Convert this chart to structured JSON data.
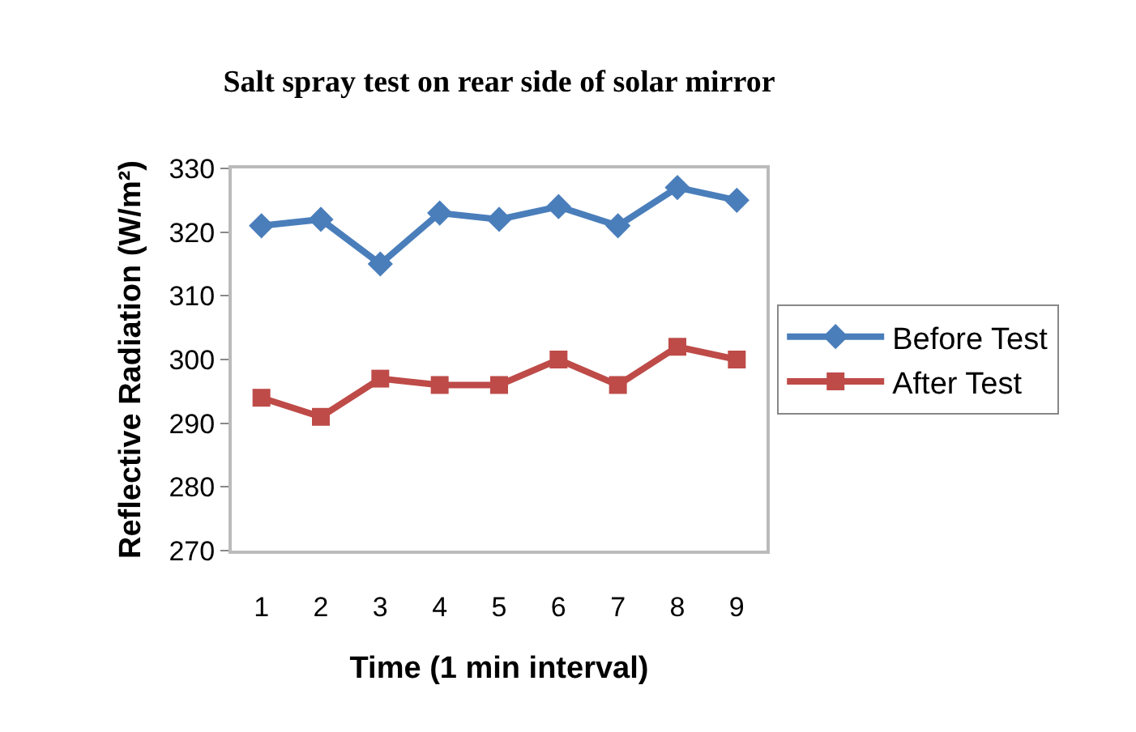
{
  "chart_data": {
    "type": "line",
    "title": "Salt spray test on rear side of solar mirror",
    "xlabel": "Time (1 min interval)",
    "ylabel": "Reflective Radiation (W/m²)",
    "categories": [
      "1",
      "2",
      "3",
      "4",
      "5",
      "6",
      "7",
      "8",
      "9"
    ],
    "series": [
      {
        "name": "Before Test",
        "color": "#4a7ebb",
        "marker": "diamond",
        "values": [
          321,
          322,
          315,
          323,
          322,
          324,
          321,
          327,
          325
        ]
      },
      {
        "name": "After Test",
        "color": "#be4b48",
        "marker": "square",
        "values": [
          294,
          291,
          297,
          296,
          296,
          300,
          296,
          302,
          300
        ]
      }
    ],
    "ylim": [
      270,
      330
    ],
    "yticks": [
      270,
      280,
      290,
      300,
      310,
      320,
      330
    ],
    "grid": false,
    "legend": "right",
    "line_style": "solid"
  }
}
